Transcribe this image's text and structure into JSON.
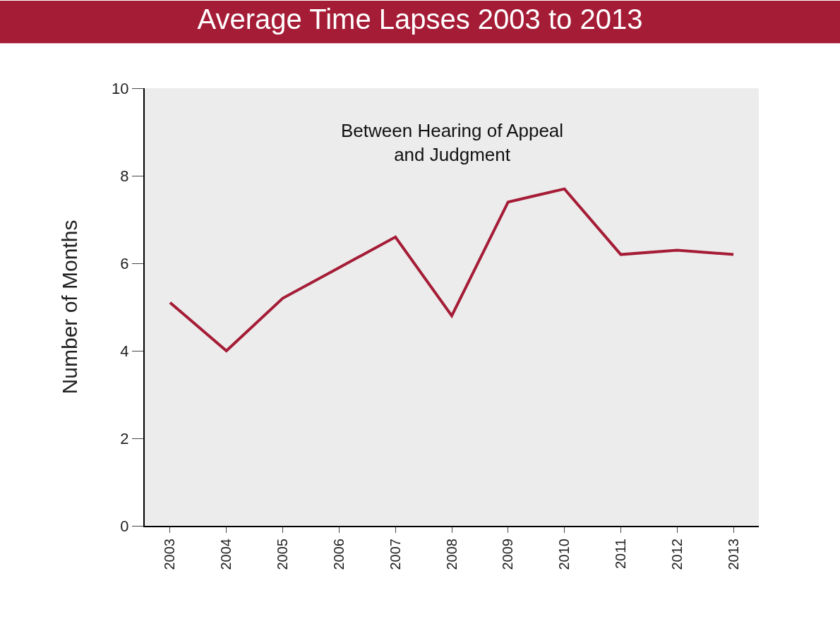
{
  "chart_data": {
    "type": "line",
    "title": "Average Time Lapses 2003 to 2013",
    "ylabel": "Number of Months",
    "annotations": [
      "Between Hearing of Appeal\nand Judgment"
    ],
    "categories": [
      "2003",
      "2004",
      "2005",
      "2006",
      "2007",
      "2008",
      "2009",
      "2010",
      "2011",
      "2012",
      "2013"
    ],
    "series": [
      {
        "color": "#a51c36",
        "values": [
          5.1,
          4.0,
          5.2,
          5.9,
          6.6,
          4.8,
          7.4,
          7.7,
          6.2,
          6.3,
          6.2
        ]
      }
    ],
    "ylim": [
      0,
      10
    ],
    "yticks": [
      0,
      2,
      4,
      6,
      8,
      10
    ],
    "grid": false,
    "marker": "none",
    "line_style": "solid"
  }
}
